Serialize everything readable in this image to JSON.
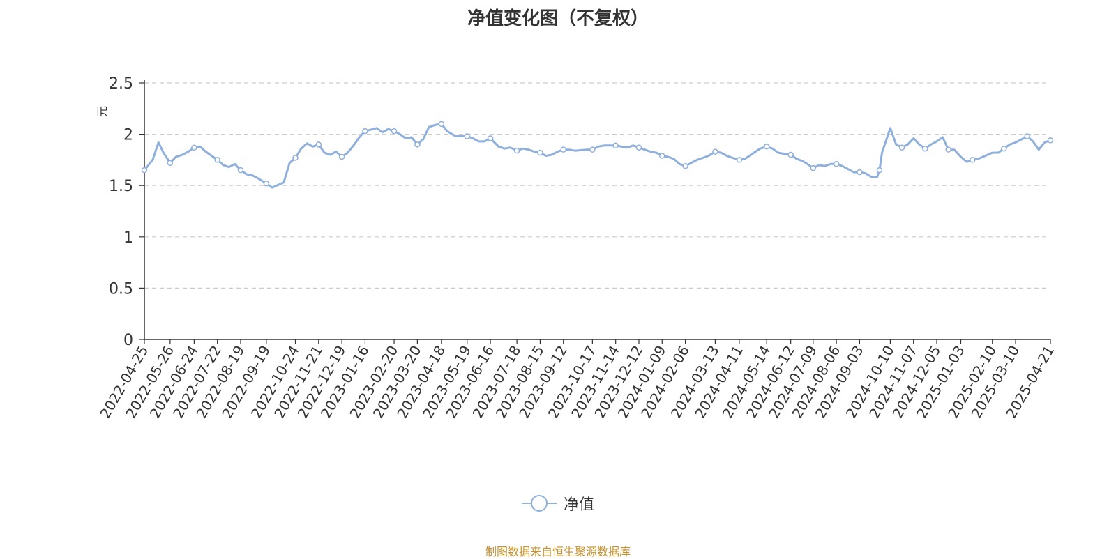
{
  "chart_data": {
    "type": "line",
    "title": "净值变化图（不复权）",
    "ylabel": "元",
    "ylim": [
      0,
      2.5
    ],
    "yticks": [
      0,
      0.5,
      1,
      1.5,
      2,
      2.5
    ],
    "xlim": [
      "2022-04-25",
      "2025-04-21"
    ],
    "grid": true,
    "legend_position": "bottom",
    "line_color": "#8fb0dc",
    "xticks": [
      "2022-04-25",
      "2022-05-26",
      "2022-06-24",
      "2022-07-22",
      "2022-08-19",
      "2022-09-19",
      "2022-10-24",
      "2022-11-21",
      "2022-12-19",
      "2023-01-16",
      "2023-02-20",
      "2023-03-20",
      "2023-04-18",
      "2023-05-19",
      "2023-06-16",
      "2023-07-18",
      "2023-08-15",
      "2023-09-12",
      "2023-10-17",
      "2023-11-14",
      "2023-12-12",
      "2024-01-09",
      "2024-02-06",
      "2024-03-13",
      "2024-04-11",
      "2024-05-14",
      "2024-06-12",
      "2024-07-09",
      "2024-08-06",
      "2024-09-03",
      "2024-10-10",
      "2024-11-07",
      "2024-12-05",
      "2025-01-03",
      "2025-02-10",
      "2025-03-10",
      "2025-04-21"
    ],
    "series": [
      {
        "name": "净值",
        "x": [
          "2022-04-25",
          "2022-05-05",
          "2022-05-12",
          "2022-05-18",
          "2022-05-26",
          "2022-06-02",
          "2022-06-10",
          "2022-06-17",
          "2022-06-24",
          "2022-07-01",
          "2022-07-08",
          "2022-07-15",
          "2022-07-22",
          "2022-07-29",
          "2022-08-05",
          "2022-08-12",
          "2022-08-19",
          "2022-08-26",
          "2022-09-02",
          "2022-09-09",
          "2022-09-19",
          "2022-09-26",
          "2022-10-10",
          "2022-10-17",
          "2022-10-24",
          "2022-10-31",
          "2022-11-07",
          "2022-11-14",
          "2022-11-21",
          "2022-11-28",
          "2022-12-05",
          "2022-12-12",
          "2022-12-19",
          "2022-12-26",
          "2023-01-03",
          "2023-01-09",
          "2023-01-16",
          "2023-01-30",
          "2023-02-06",
          "2023-02-13",
          "2023-02-20",
          "2023-02-27",
          "2023-03-06",
          "2023-03-13",
          "2023-03-20",
          "2023-03-27",
          "2023-04-03",
          "2023-04-10",
          "2023-04-18",
          "2023-04-25",
          "2023-05-05",
          "2023-05-12",
          "2023-05-19",
          "2023-05-26",
          "2023-06-02",
          "2023-06-09",
          "2023-06-16",
          "2023-06-26",
          "2023-07-03",
          "2023-07-10",
          "2023-07-18",
          "2023-07-25",
          "2023-08-01",
          "2023-08-08",
          "2023-08-15",
          "2023-08-22",
          "2023-08-29",
          "2023-09-05",
          "2023-09-12",
          "2023-09-19",
          "2023-09-26",
          "2023-10-10",
          "2023-10-17",
          "2023-10-24",
          "2023-10-31",
          "2023-11-07",
          "2023-11-14",
          "2023-11-21",
          "2023-11-28",
          "2023-12-05",
          "2023-12-12",
          "2023-12-19",
          "2023-12-26",
          "2024-01-02",
          "2024-01-09",
          "2024-01-16",
          "2024-01-23",
          "2024-01-30",
          "2024-02-06",
          "2024-02-20",
          "2024-02-27",
          "2024-03-05",
          "2024-03-13",
          "2024-03-20",
          "2024-03-27",
          "2024-04-03",
          "2024-04-11",
          "2024-04-18",
          "2024-04-25",
          "2024-05-06",
          "2024-05-14",
          "2024-05-21",
          "2024-05-28",
          "2024-06-04",
          "2024-06-12",
          "2024-06-19",
          "2024-06-26",
          "2024-07-02",
          "2024-07-09",
          "2024-07-16",
          "2024-07-23",
          "2024-07-30",
          "2024-08-06",
          "2024-08-13",
          "2024-08-20",
          "2024-08-27",
          "2024-09-03",
          "2024-09-10",
          "2024-09-18",
          "2024-09-24",
          "2024-09-27",
          "2024-09-30",
          "2024-10-10",
          "2024-10-17",
          "2024-10-24",
          "2024-10-31",
          "2024-11-07",
          "2024-11-14",
          "2024-11-21",
          "2024-11-28",
          "2024-12-05",
          "2024-12-12",
          "2024-12-19",
          "2024-12-26",
          "2025-01-03",
          "2025-01-10",
          "2025-01-17",
          "2025-01-24",
          "2025-02-10",
          "2025-02-17",
          "2025-02-24",
          "2025-03-03",
          "2025-03-10",
          "2025-03-17",
          "2025-03-24",
          "2025-03-31",
          "2025-04-07",
          "2025-04-14",
          "2025-04-21"
        ],
        "y": [
          1.65,
          1.75,
          1.92,
          1.82,
          1.72,
          1.78,
          1.8,
          1.83,
          1.87,
          1.88,
          1.83,
          1.79,
          1.75,
          1.7,
          1.68,
          1.71,
          1.65,
          1.61,
          1.6,
          1.57,
          1.52,
          1.48,
          1.53,
          1.72,
          1.77,
          1.86,
          1.91,
          1.88,
          1.9,
          1.82,
          1.8,
          1.83,
          1.78,
          1.82,
          1.9,
          1.97,
          2.03,
          2.06,
          2.02,
          2.05,
          2.03,
          2.0,
          1.96,
          1.97,
          1.9,
          1.95,
          2.07,
          2.09,
          2.1,
          2.03,
          1.98,
          1.98,
          1.98,
          1.96,
          1.93,
          1.93,
          1.96,
          1.88,
          1.86,
          1.87,
          1.84,
          1.86,
          1.85,
          1.83,
          1.82,
          1.79,
          1.8,
          1.83,
          1.85,
          1.85,
          1.84,
          1.85,
          1.85,
          1.88,
          1.89,
          1.89,
          1.89,
          1.88,
          1.87,
          1.89,
          1.87,
          1.85,
          1.83,
          1.82,
          1.79,
          1.78,
          1.76,
          1.71,
          1.69,
          1.75,
          1.77,
          1.79,
          1.83,
          1.82,
          1.79,
          1.77,
          1.75,
          1.76,
          1.8,
          1.86,
          1.88,
          1.86,
          1.82,
          1.81,
          1.8,
          1.76,
          1.74,
          1.71,
          1.67,
          1.7,
          1.69,
          1.71,
          1.71,
          1.69,
          1.66,
          1.63,
          1.63,
          1.62,
          1.58,
          1.58,
          1.65,
          1.82,
          2.06,
          1.9,
          1.87,
          1.9,
          1.96,
          1.9,
          1.86,
          1.9,
          1.93,
          1.97,
          1.85,
          1.85,
          1.78,
          1.73,
          1.75,
          1.76,
          1.82,
          1.82,
          1.86,
          1.9,
          1.92,
          1.95,
          1.98,
          1.93,
          1.85,
          1.92,
          1.94
        ]
      }
    ]
  },
  "legend": {
    "label": "净值"
  },
  "footer": {
    "source": "制图数据来自恒生聚源数据库"
  }
}
